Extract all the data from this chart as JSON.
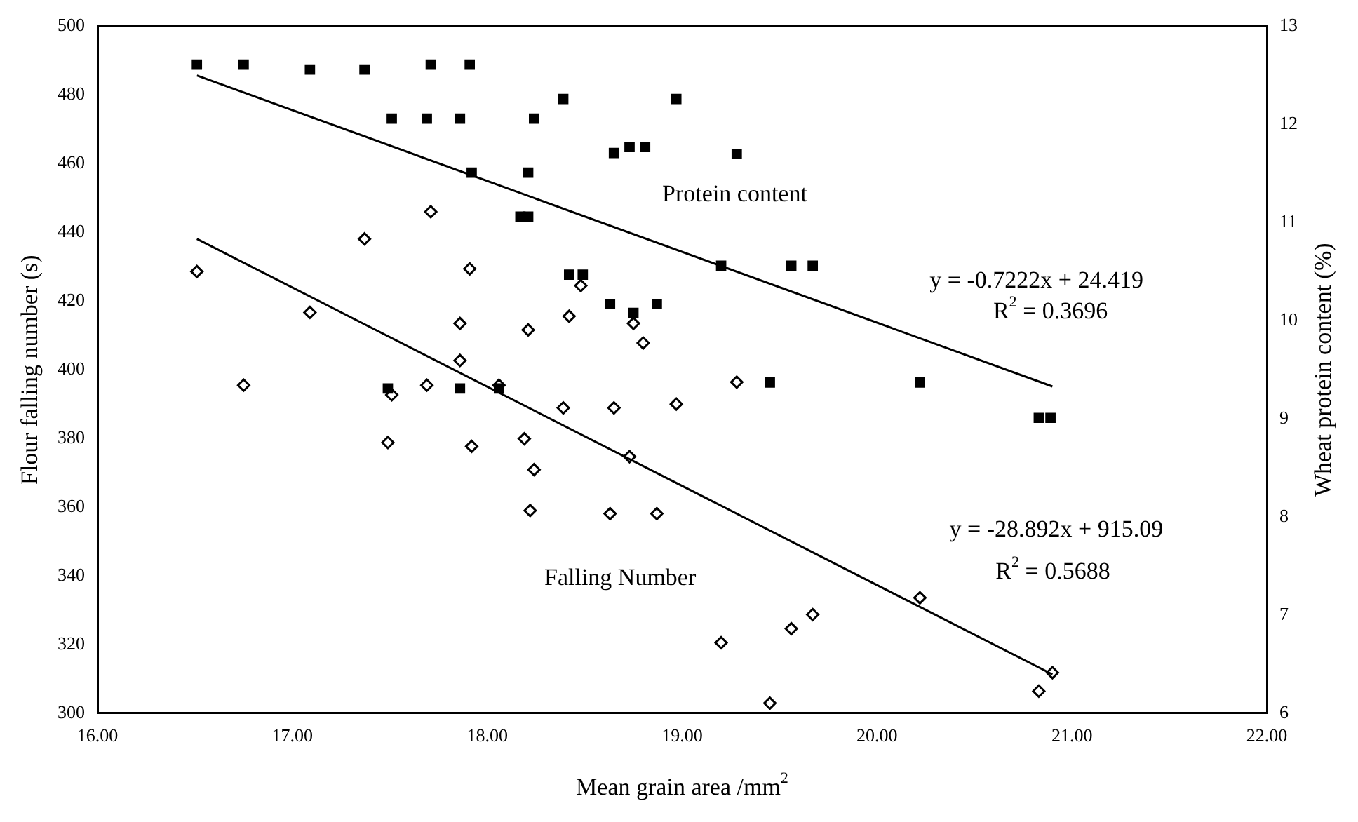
{
  "chart_data": {
    "type": "scatter",
    "xlabel": "Mean grain area /mm$^{2}$",
    "ylabel": "Flour falling number (s)",
    "y2label": "Wheat protein content (%)",
    "xlim": [
      16,
      22
    ],
    "xticks": [
      {
        "value": 16,
        "label": "16.00"
      },
      {
        "value": 17,
        "label": "17.00"
      },
      {
        "value": 18,
        "label": "18.00"
      },
      {
        "value": 19,
        "label": "19.00"
      },
      {
        "value": 20,
        "label": "20.00"
      },
      {
        "value": 21,
        "label": "21.00"
      },
      {
        "value": 22,
        "label": "22.00"
      }
    ],
    "ylim": [
      300,
      500
    ],
    "yticks": [
      300,
      320,
      340,
      360,
      380,
      400,
      420,
      440,
      460,
      480,
      500
    ],
    "y2lim": [
      6,
      13
    ],
    "y2ticks": [
      6,
      7,
      8,
      9,
      10,
      11,
      12,
      13
    ],
    "grid": false,
    "legend": false,
    "series": [
      {
        "type": "scatter",
        "axis": "y2",
        "marker": "square",
        "color": "#000000",
        "x": [
          16.51,
          16.75,
          17.09,
          17.37,
          17.71,
          17.91,
          17.51,
          17.69,
          17.86,
          18.24,
          17.92,
          18.21,
          18.17,
          18.21,
          17.49,
          17.86,
          18.06,
          18.39,
          18.97,
          18.65,
          18.73,
          18.81,
          19.28,
          18.42,
          18.49,
          19.2,
          19.56,
          19.67,
          18.63,
          18.75,
          18.87,
          19.45,
          20.22,
          20.83,
          20.89
        ],
        "values": [
          12.61,
          12.61,
          12.56,
          12.56,
          12.61,
          12.61,
          12.06,
          12.06,
          12.06,
          12.06,
          11.51,
          11.51,
          11.06,
          11.06,
          9.31,
          9.31,
          9.31,
          12.26,
          12.26,
          11.71,
          11.77,
          11.77,
          11.7,
          10.47,
          10.47,
          10.56,
          10.56,
          10.56,
          10.17,
          10.08,
          10.17,
          9.37,
          9.37,
          9.01,
          9.01
        ]
      },
      {
        "type": "scatter",
        "axis": "y",
        "marker": "diamond",
        "color": "#000000",
        "x": [
          16.51,
          16.75,
          17.09,
          17.37,
          17.71,
          17.91,
          17.86,
          17.86,
          18.21,
          17.51,
          17.69,
          18.06,
          18.48,
          18.42,
          18.75,
          18.8,
          19.28,
          18.39,
          18.65,
          18.97,
          17.49,
          17.92,
          18.19,
          18.24,
          18.22,
          18.73,
          18.63,
          18.87,
          20.22,
          19.2,
          19.56,
          19.67,
          19.45,
          20.83,
          20.9
        ],
        "values": [
          428.6,
          395.5,
          416.7,
          438.1,
          446,
          429.4,
          413.5,
          402.7,
          411.6,
          392.7,
          395.5,
          395.5,
          424.5,
          415.6,
          413.5,
          407.8,
          396.4,
          388.9,
          388.9,
          390,
          378.8,
          377.7,
          379.9,
          370.9,
          359,
          374.7,
          358.1,
          358.1,
          333.6,
          320.5,
          324.6,
          328.7,
          302.9,
          306.4,
          311.8
        ]
      },
      {
        "type": "line",
        "axis": "y2",
        "marker": "none",
        "color": "#000000",
        "x": [
          16.51,
          20.9
        ],
        "values": [
          12.5,
          9.33
        ]
      },
      {
        "type": "line",
        "axis": "y",
        "marker": "none",
        "color": "#000000",
        "x": [
          16.51,
          20.9
        ],
        "values": [
          438.1,
          311.3
        ]
      }
    ],
    "annotations": [
      "Protein content",
      "y = -0.7222x + 24.419",
      "R$^{2}$ = 0.3696",
      "Falling Number",
      "y = -28.892x + 915.09",
      "R$^{2}$ = 0.5688"
    ]
  }
}
